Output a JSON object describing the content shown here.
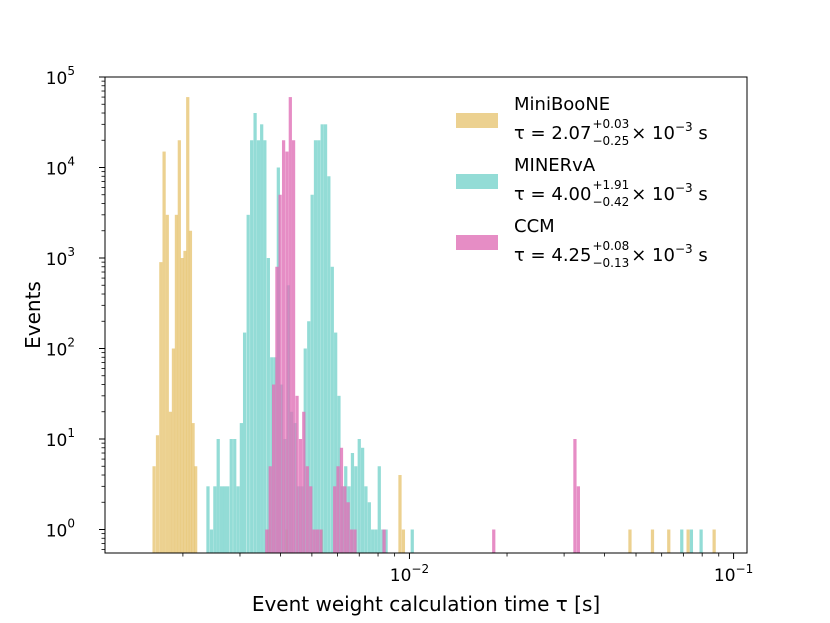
{
  "chart_data": {
    "type": "histogram",
    "xscale": "log",
    "yscale": "log",
    "xlim": [
      0.00115,
      0.11
    ],
    "ylim": [
      0.55,
      100000
    ],
    "xlabel": "Event weight calculation time τ [s]",
    "ylabel": "Events",
    "x_ticks": [
      {
        "value": 0.01,
        "base": "10",
        "exp": "−2"
      },
      {
        "value": 0.1,
        "base": "10",
        "exp": "−1"
      }
    ],
    "y_ticks": [
      {
        "value": 1,
        "base": "10",
        "exp": "0"
      },
      {
        "value": 10,
        "base": "10",
        "exp": "1"
      },
      {
        "value": 100,
        "base": "10",
        "exp": "2"
      },
      {
        "value": 1000,
        "base": "10",
        "exp": "3"
      },
      {
        "value": 10000,
        "base": "10",
        "exp": "4"
      },
      {
        "value": 100000,
        "base": "10",
        "exp": "5"
      }
    ],
    "bin_width_log10": 0.01,
    "series": [
      {
        "name": "MiniBooNE",
        "color": "#e6c16b",
        "opacity": 0.75,
        "tau": {
          "prefix": "τ = 2.07",
          "plus": "+0.03",
          "minus": "−0.25",
          "suffix": " × 10",
          "exp": "−3",
          "unit": " s"
        },
        "bins": [
          [
            0.00163,
            5
          ],
          [
            0.00167,
            11
          ],
          [
            0.00171,
            900
          ],
          [
            0.00175,
            15000
          ],
          [
            0.00179,
            3000
          ],
          [
            0.00183,
            20
          ],
          [
            0.00187,
            100
          ],
          [
            0.00191,
            3000
          ],
          [
            0.00195,
            20000
          ],
          [
            0.00199,
            1000
          ],
          [
            0.00203,
            1200
          ],
          [
            0.00207,
            60000
          ],
          [
            0.00211,
            2000
          ],
          [
            0.00215,
            15
          ],
          [
            0.00219,
            5
          ],
          [
            0.00368,
            1
          ],
          [
            0.00418,
            1
          ],
          [
            0.00535,
            1
          ],
          [
            0.00935,
            4
          ],
          [
            0.00958,
            1
          ],
          [
            0.0479,
            1
          ],
          [
            0.0562,
            1
          ],
          [
            0.0631,
            1
          ],
          [
            0.0724,
            1
          ],
          [
            0.0871,
            1
          ]
        ]
      },
      {
        "name": "MINERvA",
        "color": "#6fd0c8",
        "opacity": 0.75,
        "tau": {
          "prefix": "τ = 4.00",
          "plus": "+1.91",
          "minus": "−0.42",
          "suffix": " × 10",
          "exp": "−3",
          "unit": " s"
        },
        "bins": [
          [
            0.00239,
            3
          ],
          [
            0.00245,
            1
          ],
          [
            0.00251,
            3
          ],
          [
            0.00257,
            10
          ],
          [
            0.00263,
            3
          ],
          [
            0.00269,
            3
          ],
          [
            0.00275,
            3
          ],
          [
            0.00282,
            10
          ],
          [
            0.00289,
            10
          ],
          [
            0.00296,
            3
          ],
          [
            0.00303,
            15
          ],
          [
            0.0031,
            150
          ],
          [
            0.00318,
            3000
          ],
          [
            0.00326,
            20000
          ],
          [
            0.00334,
            40000
          ],
          [
            0.00342,
            20000
          ],
          [
            0.0035,
            30000
          ],
          [
            0.00358,
            20000
          ],
          [
            0.00367,
            1000
          ],
          [
            0.00376,
            80
          ],
          [
            0.00385,
            80
          ],
          [
            0.00394,
            10000
          ],
          [
            0.00403,
            40
          ],
          [
            0.00413,
            10
          ],
          [
            0.00423,
            500
          ],
          [
            0.00433,
            20
          ],
          [
            0.00444,
            15
          ],
          [
            0.00455,
            3
          ],
          [
            0.00466,
            3
          ],
          [
            0.00477,
            100
          ],
          [
            0.00489,
            200
          ],
          [
            0.00501,
            5000
          ],
          [
            0.00513,
            20000
          ],
          [
            0.00525,
            20000
          ],
          [
            0.00538,
            30000
          ],
          [
            0.00551,
            30000
          ],
          [
            0.00564,
            8000
          ],
          [
            0.00578,
            800
          ],
          [
            0.00592,
            150
          ],
          [
            0.00606,
            30
          ],
          [
            0.00621,
            3
          ],
          [
            0.00636,
            5
          ],
          [
            0.00651,
            3
          ],
          [
            0.00667,
            7
          ],
          [
            0.00683,
            5
          ],
          [
            0.007,
            10
          ],
          [
            0.00717,
            8
          ],
          [
            0.00734,
            3
          ],
          [
            0.00752,
            2
          ],
          [
            0.0077,
            1
          ],
          [
            0.00788,
            1
          ],
          [
            0.00807,
            5
          ],
          [
            0.00827,
            1
          ],
          [
            0.00847,
            1
          ],
          [
            0.0102,
            1
          ],
          [
            0.0692,
            1
          ],
          [
            0.0741,
            1
          ],
          [
            0.0794,
            1
          ]
        ]
      },
      {
        "name": "CCM",
        "color": "#e070b6",
        "opacity": 0.8,
        "tau": {
          "prefix": "τ = 4.25",
          "plus": "+0.08",
          "minus": "−0.13",
          "suffix": " × 10",
          "exp": "−3",
          "unit": " s"
        },
        "bins": [
          [
            0.00363,
            1
          ],
          [
            0.00372,
            5
          ],
          [
            0.00381,
            40
          ],
          [
            0.0039,
            800
          ],
          [
            0.00399,
            5000
          ],
          [
            0.00409,
            20000
          ],
          [
            0.00419,
            15000
          ],
          [
            0.00429,
            60000
          ],
          [
            0.00439,
            20000
          ],
          [
            0.0045,
            30
          ],
          [
            0.00461,
            10
          ],
          [
            0.00472,
            20
          ],
          [
            0.00484,
            5
          ],
          [
            0.00496,
            3
          ],
          [
            0.00508,
            1
          ],
          [
            0.0052,
            1
          ],
          [
            0.00533,
            1
          ],
          [
            0.00588,
            3
          ],
          [
            0.00602,
            5
          ],
          [
            0.00617,
            8
          ],
          [
            0.00632,
            3
          ],
          [
            0.00647,
            2
          ],
          [
            0.00663,
            1
          ],
          [
            0.00679,
            1
          ],
          [
            0.00835,
            1
          ],
          [
            0.0182,
            1
          ],
          [
            0.0324,
            10
          ],
          [
            0.0332,
            3
          ]
        ]
      }
    ]
  }
}
